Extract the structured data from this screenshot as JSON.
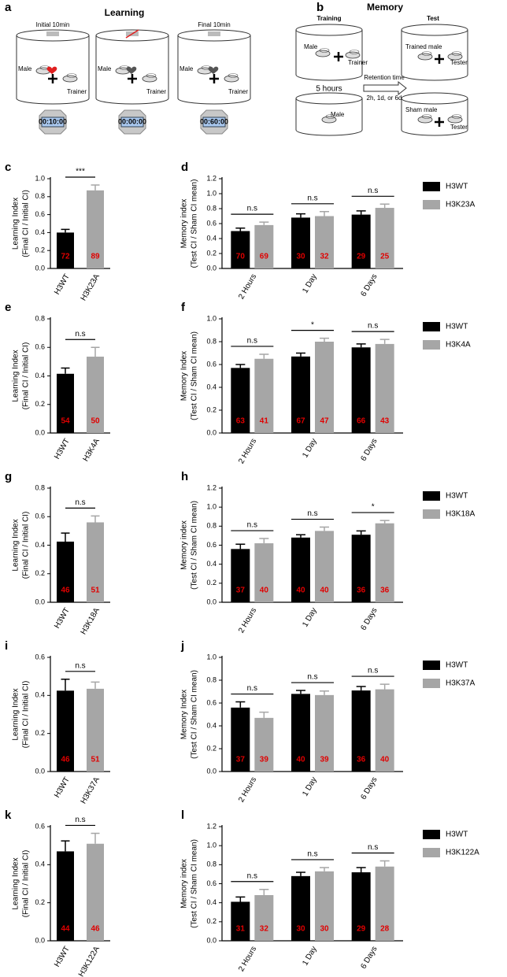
{
  "figure": {
    "a": {
      "letter": "a",
      "title": "Learning",
      "arenas": [
        {
          "caption": "Initial 10min",
          "fly": "Male",
          "partner": "Trainer",
          "timer": "00:10:00"
        },
        {
          "fly": "Male",
          "partner": "Trainer",
          "timer": "00:00:00"
        },
        {
          "caption": "Final 10min",
          "fly": "Male",
          "partner": "Trainer",
          "timer": "00:60:00"
        }
      ]
    },
    "b": {
      "letter": "b",
      "title": "Memory",
      "training": "Training",
      "test": "Test",
      "training_fly": "Male",
      "training_partner": "Trainer",
      "interval": "5 hours",
      "rest_fly": "Male",
      "retention": "Retention time",
      "retention_options": "2h, 1d, or 6d",
      "test_fly": "Trained male",
      "test_partner": "Tester",
      "sham_fly": "Sham male",
      "sham_partner": "Tester"
    }
  },
  "chart_data": [
    {
      "type": "bar",
      "panel": "c",
      "ylabel": [
        "Learning Index",
        "(Final CI / Initial CI)"
      ],
      "categories": [
        "H3WT",
        "H3K23A"
      ],
      "values": [
        0.4,
        0.87
      ],
      "errors": [
        0.035,
        0.06
      ],
      "n": [
        72,
        89
      ],
      "colors": [
        "#000000",
        "#a6a6a6"
      ],
      "significance": "***",
      "ylim": [
        0,
        1
      ],
      "yticks": [
        {
          "value": 0,
          "label": "0.0"
        },
        0.2,
        0.4,
        0.6,
        0.8,
        {
          "value": 1,
          "label": "1.0"
        }
      ]
    },
    {
      "type": "bar",
      "panel": "d",
      "ylabel": [
        "Memory index",
        "(Test CI / Sham CI mean)"
      ],
      "categories": [
        "2 Hours",
        "1 Day",
        "6 Days"
      ],
      "series": [
        {
          "name": "H3WT",
          "color": "#000000",
          "values": [
            0.5,
            0.68,
            0.72
          ],
          "errors": [
            0.04,
            0.05,
            0.05
          ],
          "n": [
            70,
            30,
            29
          ]
        },
        {
          "name": "H3K23A",
          "color": "#a6a6a6",
          "values": [
            0.58,
            0.7,
            0.81
          ],
          "errors": [
            0.04,
            0.06,
            0.05
          ],
          "n": [
            69,
            32,
            25
          ]
        }
      ],
      "significance": [
        "n.s",
        "n.s",
        "n.s"
      ],
      "ylim": [
        0,
        1.2
      ],
      "yticks": [
        {
          "value": 0,
          "label": "0.0"
        },
        0.2,
        0.4,
        0.6,
        0.8,
        {
          "value": 1,
          "label": "1.0"
        },
        1.2
      ]
    },
    {
      "type": "bar",
      "panel": "e",
      "ylabel": [
        "Learning Index",
        "(Final CI / Initial CI)"
      ],
      "categories": [
        "H3WT",
        "H3K4A"
      ],
      "values": [
        0.415,
        0.535
      ],
      "errors": [
        0.04,
        0.065
      ],
      "n": [
        54,
        50
      ],
      "colors": [
        "#000000",
        "#a6a6a6"
      ],
      "significance": "n.s",
      "ylim": [
        0,
        0.8
      ],
      "yticks": [
        {
          "value": 0,
          "label": "0.0"
        },
        0.2,
        0.4,
        0.6,
        0.8
      ]
    },
    {
      "type": "bar",
      "panel": "f",
      "ylabel": [
        "Memory Index",
        "(Test CI / Sham CI mean)"
      ],
      "categories": [
        "2 Hours",
        "1 Day",
        "6 Days"
      ],
      "series": [
        {
          "name": "H3WT",
          "color": "#000000",
          "values": [
            0.57,
            0.67,
            0.75
          ],
          "errors": [
            0.03,
            0.03,
            0.03
          ],
          "n": [
            63,
            67,
            66
          ]
        },
        {
          "name": "H3K4A",
          "color": "#a6a6a6",
          "values": [
            0.65,
            0.8,
            0.78
          ],
          "errors": [
            0.04,
            0.03,
            0.04
          ],
          "n": [
            41,
            47,
            43
          ]
        }
      ],
      "significance": [
        "n.s",
        "*",
        "n.s"
      ],
      "ylim": [
        0,
        1
      ],
      "yticks": [
        {
          "value": 0,
          "label": "0.0"
        },
        0.2,
        0.4,
        0.6,
        0.8,
        {
          "value": 1,
          "label": "1.0"
        }
      ]
    },
    {
      "type": "bar",
      "panel": "g",
      "ylabel": [
        "Learning Index",
        "(Final CI / Initial CI)"
      ],
      "categories": [
        "H3WT",
        "H3K18A"
      ],
      "values": [
        0.425,
        0.56
      ],
      "errors": [
        0.06,
        0.045
      ],
      "n": [
        46,
        51
      ],
      "colors": [
        "#000000",
        "#a6a6a6"
      ],
      "significance": "n.s",
      "ylim": [
        0,
        0.8
      ],
      "yticks": [
        {
          "value": 0,
          "label": "0.0"
        },
        0.2,
        0.4,
        0.6,
        0.8
      ]
    },
    {
      "type": "bar",
      "panel": "h",
      "ylabel": [
        "Memory index",
        "(Test CI / Sham CI mean)"
      ],
      "categories": [
        "2 Hours",
        "1 Day",
        "6 Days"
      ],
      "series": [
        {
          "name": "H3WT",
          "color": "#000000",
          "values": [
            0.56,
            0.68,
            0.71
          ],
          "errors": [
            0.05,
            0.03,
            0.04
          ],
          "n": [
            37,
            40,
            36
          ]
        },
        {
          "name": "H3K18A",
          "color": "#a6a6a6",
          "values": [
            0.62,
            0.75,
            0.83
          ],
          "errors": [
            0.05,
            0.04,
            0.03
          ],
          "n": [
            40,
            40,
            36
          ]
        }
      ],
      "significance": [
        "n.s",
        "n.s",
        "*"
      ],
      "ylim": [
        0,
        1.2
      ],
      "yticks": [
        {
          "value": 0,
          "label": "0.0"
        },
        0.2,
        0.4,
        0.6,
        0.8,
        {
          "value": 1,
          "label": "1.0"
        },
        1.2
      ]
    },
    {
      "type": "bar",
      "panel": "i",
      "ylabel": [
        "Learning Index",
        "(Final CI / Initial CI)"
      ],
      "categories": [
        "H3WT",
        "H3K37A"
      ],
      "values": [
        0.425,
        0.435
      ],
      "errors": [
        0.06,
        0.035
      ],
      "n": [
        46,
        51
      ],
      "colors": [
        "#000000",
        "#a6a6a6"
      ],
      "significance": "n.s",
      "ylim": [
        0,
        0.6
      ],
      "yticks": [
        {
          "value": 0,
          "label": "0.0"
        },
        0.2,
        0.4,
        0.6
      ]
    },
    {
      "type": "bar",
      "panel": "j",
      "ylabel": [
        "Memory Index",
        "(Test CI / Sham CI mean)"
      ],
      "categories": [
        "2 Hours",
        "1 Day",
        "6 Days"
      ],
      "series": [
        {
          "name": "H3WT",
          "color": "#000000",
          "values": [
            0.56,
            0.68,
            0.71
          ],
          "errors": [
            0.05,
            0.03,
            0.035
          ],
          "n": [
            37,
            40,
            36
          ]
        },
        {
          "name": "H3K37A",
          "color": "#a6a6a6",
          "values": [
            0.47,
            0.67,
            0.72
          ],
          "errors": [
            0.05,
            0.035,
            0.045
          ],
          "n": [
            39,
            39,
            40
          ]
        }
      ],
      "significance": [
        "n.s",
        "n.s",
        "n.s"
      ],
      "ylim": [
        0,
        1
      ],
      "yticks": [
        {
          "value": 0,
          "label": "0.0"
        },
        0.2,
        0.4,
        0.6,
        0.8,
        {
          "value": 1,
          "label": "1.0"
        }
      ]
    },
    {
      "type": "bar",
      "panel": "k",
      "ylabel": [
        "Learning Index",
        "(Final CI / Initial CI)"
      ],
      "categories": [
        "H3WT",
        "H3K122A"
      ],
      "values": [
        0.47,
        0.51
      ],
      "errors": [
        0.055,
        0.055
      ],
      "n": [
        44,
        46
      ],
      "colors": [
        "#000000",
        "#a6a6a6"
      ],
      "significance": "n.s",
      "ylim": [
        0,
        0.6
      ],
      "yticks": [
        {
          "value": 0,
          "label": "0.0"
        },
        0.2,
        0.4,
        0.6
      ]
    },
    {
      "type": "bar",
      "panel": "l",
      "ylabel": [
        "Memory index",
        "(Test CI / Sham CI mean)"
      ],
      "categories": [
        "2 Hours",
        "1 Day",
        "6 Days"
      ],
      "series": [
        {
          "name": "H3WT",
          "color": "#000000",
          "values": [
            0.41,
            0.68,
            0.72
          ],
          "errors": [
            0.05,
            0.04,
            0.05
          ],
          "n": [
            31,
            30,
            29
          ]
        },
        {
          "name": "H3K122A",
          "color": "#a6a6a6",
          "values": [
            0.48,
            0.73,
            0.78
          ],
          "errors": [
            0.06,
            0.04,
            0.06
          ],
          "n": [
            32,
            30,
            28
          ]
        }
      ],
      "significance": [
        "n.s",
        "n.s",
        "n.s"
      ],
      "ylim": [
        0,
        1.2
      ],
      "yticks": [
        {
          "value": 0,
          "label": "0.0"
        },
        0.2,
        0.4,
        0.6,
        0.8,
        {
          "value": 1,
          "label": "1.0"
        },
        1.2
      ]
    }
  ]
}
